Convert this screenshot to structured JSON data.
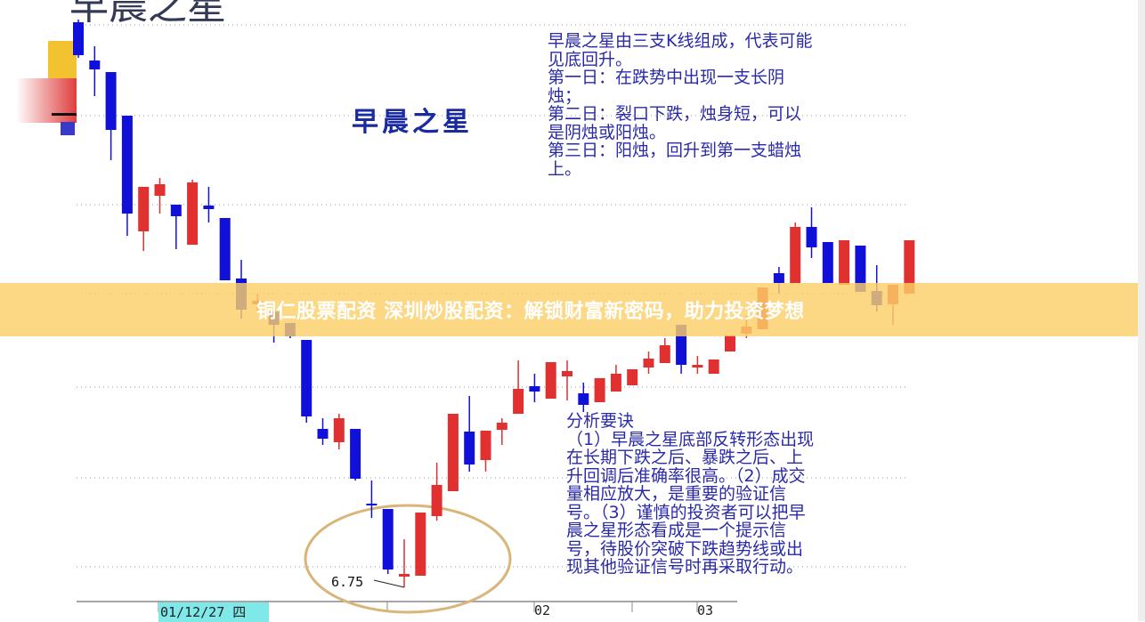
{
  "chart_data": {
    "type": "candlestick",
    "title": "早晨之星",
    "subtitle": "早晨之星",
    "colors": {
      "up": "#e03030",
      "down": "#1010d8",
      "grid": "#9a9a9a",
      "circle": "#d9b57a"
    },
    "grid": true,
    "x_ticks": [
      {
        "label": "01/12/27 四",
        "index": 5
      },
      {
        "label": "02",
        "index": 28
      },
      {
        "label": "03",
        "index": 38
      }
    ],
    "annotation": {
      "label": "6.75",
      "candle_index": 20
    },
    "candles": [
      [
        13.1,
        13.13,
        12.7,
        12.73
      ],
      [
        12.67,
        12.83,
        12.27,
        12.57
      ],
      [
        12.54,
        12.54,
        11.55,
        11.89
      ],
      [
        12.05,
        12.05,
        10.7,
        10.95
      ],
      [
        10.75,
        11.25,
        10.53,
        11.25
      ],
      [
        11.15,
        11.35,
        10.95,
        11.28
      ],
      [
        11.05,
        11.05,
        10.55,
        10.92
      ],
      [
        10.6,
        11.33,
        10.6,
        11.3
      ],
      [
        11.04,
        11.25,
        10.85,
        11.0
      ],
      [
        10.9,
        10.9,
        10.2,
        10.2
      ],
      [
        10.22,
        10.43,
        9.77,
        9.87
      ],
      [
        9.93,
        10.05,
        9.85,
        9.97
      ],
      [
        9.85,
        9.95,
        9.5,
        9.7
      ],
      [
        9.72,
        9.72,
        9.55,
        9.57
      ],
      [
        9.53,
        9.53,
        8.6,
        8.67
      ],
      [
        8.53,
        8.65,
        8.35,
        8.42
      ],
      [
        8.38,
        8.7,
        8.3,
        8.65
      ],
      [
        8.53,
        8.53,
        7.95,
        7.97
      ],
      [
        7.69,
        7.95,
        7.53,
        7.67
      ],
      [
        7.63,
        7.63,
        6.9,
        6.95
      ],
      [
        6.87,
        7.29,
        6.75,
        6.9
      ],
      [
        6.88,
        7.59,
        6.88,
        7.59
      ],
      [
        7.55,
        8.15,
        7.5,
        7.9
      ],
      [
        7.83,
        8.7,
        7.83,
        8.7
      ],
      [
        8.5,
        8.9,
        8.05,
        8.13
      ],
      [
        8.18,
        8.51,
        8.05,
        8.51
      ],
      [
        8.52,
        8.65,
        8.35,
        8.6
      ],
      [
        8.7,
        9.3,
        8.7,
        8.98
      ],
      [
        9.01,
        9.15,
        8.83,
        8.95
      ],
      [
        8.87,
        9.28,
        8.87,
        9.28
      ],
      [
        9.12,
        9.3,
        8.85,
        9.18
      ],
      [
        8.93,
        9.05,
        8.72,
        8.8
      ],
      [
        8.83,
        9.1,
        8.83,
        9.1
      ],
      [
        8.95,
        9.25,
        8.95,
        9.15
      ],
      [
        9.02,
        9.2,
        9.02,
        9.2
      ],
      [
        9.22,
        9.4,
        9.15,
        9.32
      ],
      [
        9.27,
        9.55,
        9.27,
        9.47
      ],
      [
        9.7,
        9.7,
        9.15,
        9.25
      ],
      [
        9.22,
        9.35,
        9.15,
        9.25
      ],
      [
        9.15,
        9.31,
        9.15,
        9.31
      ],
      [
        9.4,
        9.58,
        9.4,
        9.58
      ],
      [
        9.6,
        9.8,
        9.55,
        9.68
      ],
      [
        9.65,
        10.12,
        9.65,
        10.12
      ],
      [
        10.28,
        10.35,
        10.05,
        10.17
      ],
      [
        10.17,
        10.85,
        10.17,
        10.8
      ],
      [
        10.8,
        11.02,
        10.45,
        10.57
      ],
      [
        10.63,
        10.63,
        10.17,
        10.17
      ],
      [
        10.15,
        10.65,
        10.15,
        10.65
      ],
      [
        10.59,
        10.59,
        10.07,
        10.07
      ],
      [
        10.08,
        10.37,
        9.85,
        9.92
      ],
      [
        9.93,
        10.15,
        9.7,
        10.15
      ],
      [
        10.05,
        10.65,
        10.05,
        10.65
      ]
    ]
  },
  "text": {
    "description_lines": [
      "早晨之星由三支K线组成，代表可能",
      "见底回升。",
      "第一日：在跌势中出现一支长阴",
      "烛；",
      "第二日：裂口下跌，烛身短，可以",
      "是阴烛或阳烛。",
      "第三日：阳烛，回升到第一支蜡烛",
      "上。"
    ],
    "analysis_lines": [
      "分析要诀",
      "（1）早晨之星底部反转形态出现",
      "在长期下跌之后、暴跌之后、上",
      "升回调后准确率很高。（2）成交",
      "量相应放大，是重要的验证信",
      "号。（3）谨慎的投资者可以把早",
      "晨之星形态看成是一个提示信",
      "号，待股价突破下跌趋势线或出",
      "现其他验证信号时再采取行动。"
    ]
  },
  "banner": {
    "text": "铜仁股票配资 深圳炒股配资：解锁财富新密码，助力投资梦想"
  }
}
